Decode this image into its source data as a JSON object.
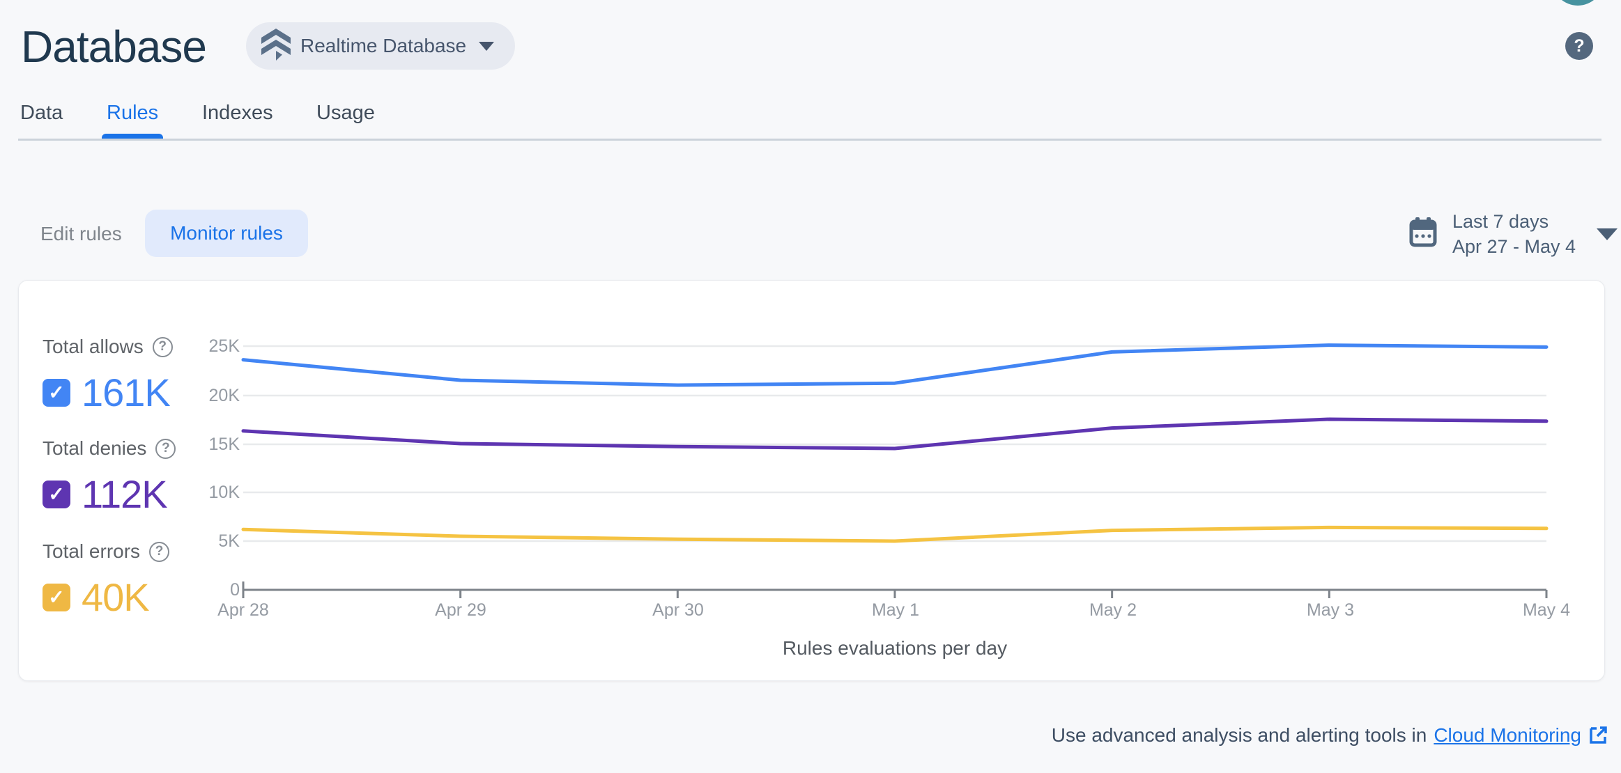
{
  "header": {
    "title": "Database",
    "database_chip": {
      "label": "Realtime Database"
    },
    "help_icon_glyph": "?"
  },
  "tabs": [
    {
      "label": "Data",
      "active": false
    },
    {
      "label": "Rules",
      "active": true
    },
    {
      "label": "Indexes",
      "active": false
    },
    {
      "label": "Usage",
      "active": false
    }
  ],
  "toolbar": {
    "edit_rules_label": "Edit rules",
    "monitor_rules_label": "Monitor rules",
    "date_range": {
      "line1": "Last 7 days",
      "line2": "Apr 27 - May 4"
    }
  },
  "icons": {
    "check": "✓",
    "help": "?",
    "calendar": "calendar-icon",
    "realtime_database": "realtime-database-icon"
  },
  "colors": {
    "allows": "#4285f4",
    "denies": "#5e35b1",
    "errors": "#efb844",
    "active_tab": "#1a73e8",
    "link": "#1a73e8"
  },
  "chart_data": {
    "type": "line",
    "title": "Rules evaluations per day",
    "x": [
      "Apr 28",
      "Apr 29",
      "Apr 30",
      "May 1",
      "May 2",
      "May 3",
      "May 4"
    ],
    "y_tick_labels": [
      "25K",
      "20K",
      "15K",
      "10K",
      "5K",
      "0"
    ],
    "ylim": [
      0,
      25000
    ],
    "grid": true,
    "legend_position": "left",
    "series": [
      {
        "name": "Total allows",
        "total": "161K",
        "color": "#4285f4",
        "checked": true,
        "values": [
          23600,
          21500,
          21000,
          21200,
          24400,
          25100,
          24900
        ]
      },
      {
        "name": "Total denies",
        "total": "112K",
        "color": "#5e35b1",
        "checked": true,
        "values": [
          16300,
          15000,
          14700,
          14500,
          16600,
          17500,
          17300
        ]
      },
      {
        "name": "Total errors",
        "total": "40K",
        "color": "#f5c342",
        "checked": true,
        "values": [
          6200,
          5500,
          5200,
          5000,
          6100,
          6400,
          6300
        ]
      }
    ]
  },
  "footer": {
    "text_prefix": "Use advanced analysis and alerting tools in",
    "link_label": "Cloud Monitoring"
  }
}
